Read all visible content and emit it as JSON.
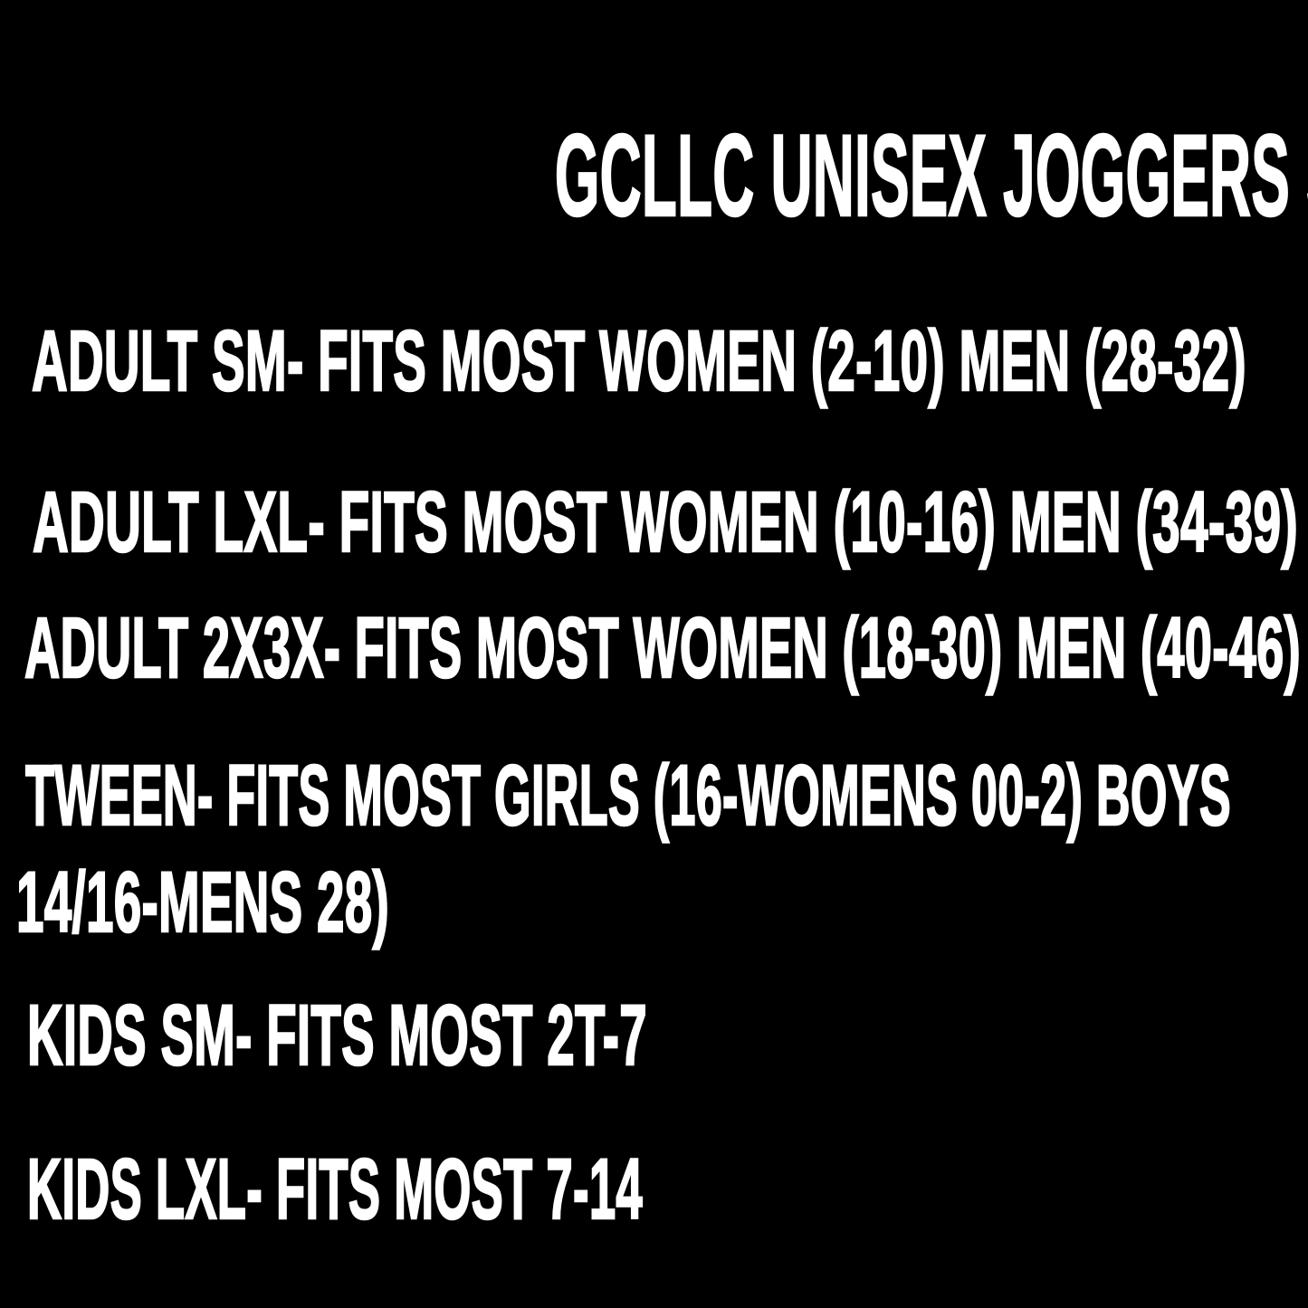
{
  "page": {
    "background_color": "#000000",
    "text_color": "#ffffff"
  },
  "title": "GCLLC UNISEX JOGGERS SIZE CHART",
  "lines": [
    "ADULT SM- FITS MOST WOMEN (2-10) MEN (28-32)",
    "ADULT LXL- FITS MOST WOMEN (10-16) MEN (34-39)",
    "ADULT 2X3X- FITS MOST WOMEN (18-30) MEN (40-46)",
    "TWEEN- FITS MOST GIRLS (16-WOMENS 00-2) BOYS",
    "14/16-MENS 28)",
    "KIDS SM- FITS MOST 2T-7",
    "KIDS LXL- FITS MOST 7-14"
  ],
  "sizes": [
    {
      "size": "ADULT SM",
      "fits": "FITS MOST WOMEN (2-10) MEN (28-32)"
    },
    {
      "size": "ADULT LXL",
      "fits": "FITS MOST WOMEN (10-16) MEN (34-39)"
    },
    {
      "size": "ADULT 2X3X",
      "fits": "FITS MOST WOMEN (18-30) MEN (40-46)"
    },
    {
      "size": "TWEEN",
      "fits": "FITS MOST GIRLS (16-WOMENS 00-2) BOYS 14/16-MENS 28)"
    },
    {
      "size": "KIDS SM",
      "fits": "FITS MOST 2T-7"
    },
    {
      "size": "KIDS LXL",
      "fits": "FITS MOST 7-14"
    }
  ]
}
